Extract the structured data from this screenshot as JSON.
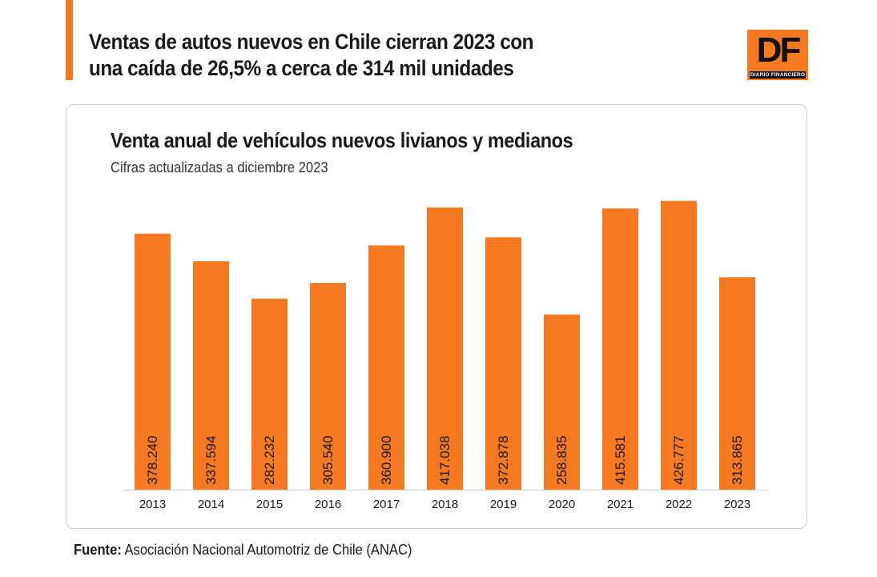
{
  "header": {
    "headline": "Ventas de autos nuevos en Chile cierran 2023 con una caída de 26,5% a cerca de 314 mil unidades"
  },
  "logo": {
    "letters": "DF",
    "subtitle": "DIARIO FINANCIERO"
  },
  "colors": {
    "accent": "#f47920",
    "text": "#1a1a1a"
  },
  "chart_data": {
    "type": "bar",
    "title": "Venta anual de vehículos nuevos livianos y medianos",
    "subtitle": "Cifras actualizadas a diciembre 2023",
    "categories": [
      "2013",
      "2014",
      "2015",
      "2016",
      "2017",
      "2018",
      "2019",
      "2020",
      "2021",
      "2022",
      "2023"
    ],
    "values": [
      378240,
      337594,
      282232,
      305540,
      360900,
      417038,
      372878,
      258835,
      415581,
      426777,
      313865
    ],
    "data_labels": [
      "378.240",
      "337.594",
      "282.232",
      "305.540",
      "360.900",
      "417.038",
      "372.878",
      "258.835",
      "415.581",
      "426.777",
      "313.865"
    ],
    "xlabel": "",
    "ylabel": "",
    "ylim": [
      0,
      430000
    ],
    "grid": false,
    "legend": "none"
  },
  "footer": {
    "source_label": "Fuente:",
    "source_text": "Asociación Nacional Automotriz de Chile (ANAC)"
  }
}
